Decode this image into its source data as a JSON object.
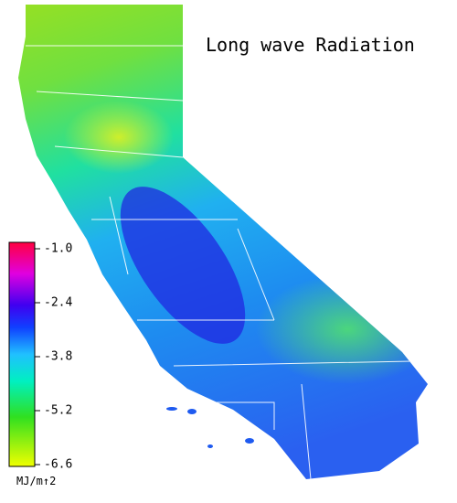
{
  "title": "Long wave Radiation",
  "colorbar": {
    "range": [
      -6.6,
      -1.0
    ],
    "ticks": [
      {
        "value": -1.0,
        "label": "-1.0"
      },
      {
        "value": -2.4,
        "label": "-2.4"
      },
      {
        "value": -3.8,
        "label": "-3.8"
      },
      {
        "value": -5.2,
        "label": "-5.2"
      },
      {
        "value": -6.6,
        "label": "-6.6"
      }
    ],
    "label": "MJ/m↑2"
  }
}
